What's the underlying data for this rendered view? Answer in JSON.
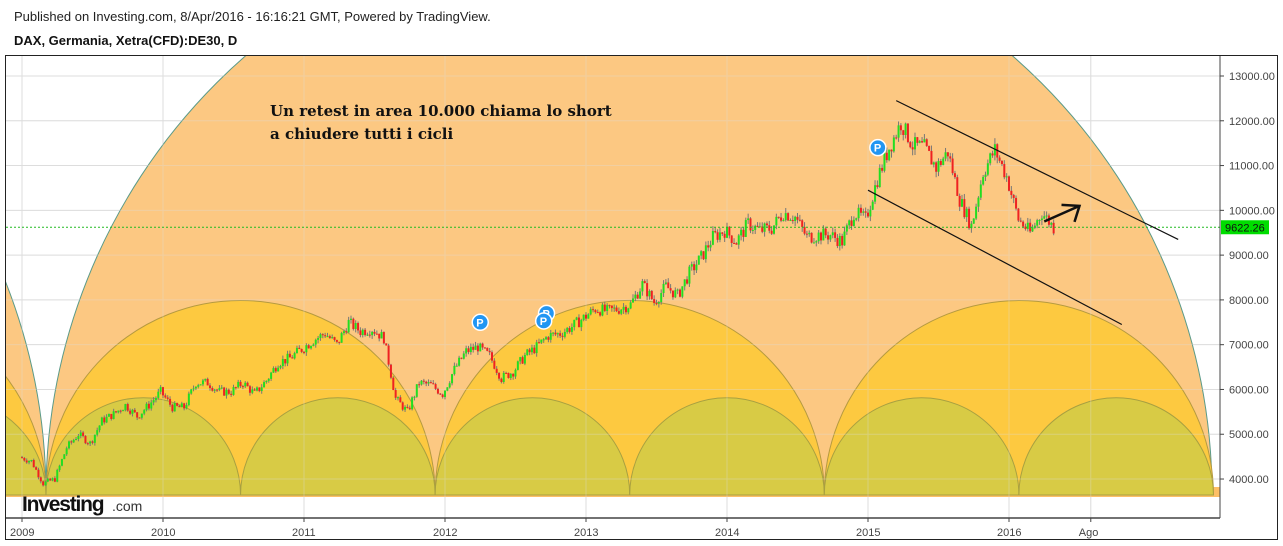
{
  "header": {
    "published": "Published on Investing.com, 8/Apr/2016 - 16:16:21 GMT, Powered by TradingView.",
    "symbol": "DAX, Germania, Xetra(CFD):DE30, D"
  },
  "logo": {
    "brand": "Investing",
    "suffix": ".com"
  },
  "colors": {
    "up": "#22dd22",
    "down": "#ee2222",
    "price_tag": "#00dd00",
    "arc_large": "#fcc882",
    "arc_medium": "#fdc940",
    "arc_small": "#d8cb45",
    "marker": "#2196f3"
  },
  "chart_data": {
    "type": "candlestick",
    "title": "DAX, Germania, Xetra(CFD):DE30, D",
    "ylim": [
      3500,
      13400
    ],
    "y_ticks": [
      "13000.00",
      "12000.00",
      "11000.00",
      "10000.00",
      "9000.00",
      "8000.00",
      "7000.00",
      "6000.00",
      "5000.00",
      "4000.00"
    ],
    "y_tick_values": [
      13000,
      12000,
      11000,
      10000,
      9000,
      8000,
      7000,
      6000,
      5000,
      4000
    ],
    "x_ticks": [
      "2009",
      "2010",
      "2011",
      "2012",
      "2013",
      "2014",
      "2015",
      "2016",
      "Ago"
    ],
    "x_tick_values": [
      2009.0,
      2010.0,
      2011.0,
      2012.0,
      2013.0,
      2014.0,
      2015.0,
      2016.0,
      2016.58
    ],
    "xlim": [
      2008.9,
      2017.5
    ],
    "last_price": "9622.26",
    "last_value": 9622.26,
    "monthly_closes_start": 2009.0,
    "monthly_closes": [
      4400,
      3900,
      4000,
      4700,
      5000,
      4800,
      5300,
      5450,
      5650,
      5400,
      5650,
      5950,
      5600,
      5600,
      6150,
      6150,
      5950,
      5950,
      6150,
      5900,
      6200,
      6600,
      6700,
      6900,
      7100,
      7250,
      7000,
      7500,
      7300,
      7350,
      7150,
      5800,
      5500,
      6150,
      6100,
      5900,
      6450,
      6850,
      6950,
      6750,
      6250,
      6400,
      6750,
      6950,
      7200,
      7250,
      7400,
      7600,
      7800,
      7750,
      7800,
      7900,
      8350,
      7950,
      8300,
      8100,
      8600,
      8950,
      9400,
      9550,
      9300,
      9700,
      9550,
      9600,
      9950,
      9850,
      9400,
      9450,
      9450,
      9300,
      9950,
      9800,
      10700,
      11400,
      11950,
      11450,
      11400,
      10950,
      11300,
      10250,
      9650,
      10850,
      11350,
      10750,
      9800,
      9500,
      9950,
      9622
    ],
    "annotation": [
      "Un retest in area 10.000 chiama lo short",
      "a chiudere tutti i cicli"
    ],
    "markers": [
      {
        "label": "P",
        "x": 2012.25,
        "y": 7500
      },
      {
        "label": "P",
        "x": 2012.72,
        "y": 7700
      },
      {
        "label": "P",
        "x": 2012.7,
        "y": 7530
      },
      {
        "label": "P",
        "x": 2015.07,
        "y": 11400
      }
    ],
    "trendlines": [
      {
        "name": "upper-channel",
        "from": [
          2015.2,
          12450
        ],
        "to": [
          2017.2,
          9350
        ]
      },
      {
        "name": "lower-channel",
        "from": [
          2015.0,
          10450
        ],
        "to": [
          2016.8,
          7450
        ]
      }
    ],
    "arrow": {
      "from": [
        2016.25,
        9750
      ],
      "to": [
        2016.5,
        10100
      ]
    },
    "cycles": {
      "start": 2009.17,
      "large_period_years": 8.27,
      "medium_period_years": 2.76,
      "small_period_years": 1.38
    }
  }
}
